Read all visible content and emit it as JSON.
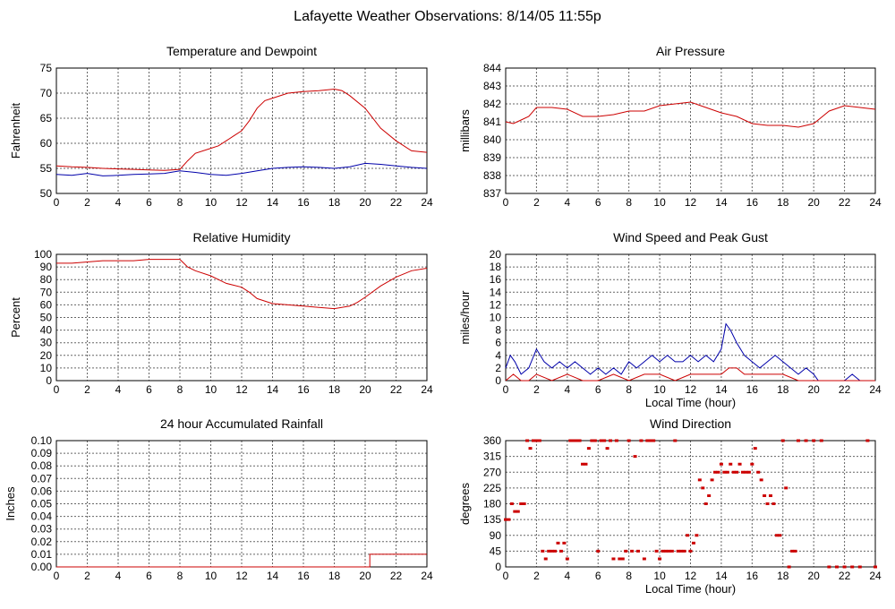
{
  "page": {
    "title": "Lafayette Weather Observations: 8/14/05 11:55p"
  },
  "chart_data": [
    {
      "type": "line",
      "title": "Temperature and Dewpoint",
      "xlabel": "",
      "ylabel": "Fahrenheit",
      "xlim": [
        0,
        24
      ],
      "ylim": [
        50,
        75
      ],
      "xticks": [
        0,
        2,
        4,
        6,
        8,
        10,
        12,
        14,
        16,
        18,
        20,
        22,
        24
      ],
      "yticks": [
        50,
        55,
        60,
        65,
        70,
        75
      ],
      "grid": true,
      "series": [
        {
          "color": "#cc0000",
          "x": [
            0,
            1,
            2,
            3,
            4,
            5,
            6,
            7,
            8,
            8.5,
            9,
            10,
            10.5,
            11,
            11.5,
            12,
            12.5,
            13,
            13.5,
            14,
            15,
            16,
            17,
            18,
            18.5,
            19,
            20,
            21,
            22,
            23,
            24
          ],
          "y": [
            55.5,
            55.3,
            55.2,
            55.0,
            54.9,
            54.8,
            54.7,
            54.6,
            54.8,
            56.5,
            58.0,
            59.0,
            59.5,
            60.5,
            61.5,
            62.5,
            64.5,
            67.0,
            68.5,
            69.0,
            70.0,
            70.3,
            70.5,
            70.8,
            70.5,
            69.5,
            67.0,
            63.0,
            60.5,
            58.5,
            58.2
          ]
        },
        {
          "color": "#0000aa",
          "x": [
            0,
            1,
            2,
            3,
            4,
            5,
            6,
            7,
            8,
            9,
            10,
            11,
            12,
            13,
            14,
            15,
            16,
            17,
            18,
            19,
            20,
            21,
            22,
            23,
            24
          ],
          "y": [
            53.8,
            53.6,
            54.0,
            53.5,
            53.6,
            53.8,
            53.9,
            54.0,
            54.5,
            54.2,
            53.8,
            53.6,
            54.0,
            54.5,
            55.0,
            55.2,
            55.3,
            55.2,
            55.0,
            55.3,
            56.0,
            55.8,
            55.5,
            55.2,
            55.0
          ]
        }
      ]
    },
    {
      "type": "line",
      "title": "Air Pressure",
      "xlabel": "",
      "ylabel": "millibars",
      "xlim": [
        0,
        24
      ],
      "ylim": [
        837,
        844
      ],
      "xticks": [
        0,
        2,
        4,
        6,
        8,
        10,
        12,
        14,
        16,
        18,
        20,
        22,
        24
      ],
      "yticks": [
        837,
        838,
        839,
        840,
        841,
        842,
        843,
        844
      ],
      "grid": true,
      "series": [
        {
          "color": "#cc0000",
          "x": [
            0,
            0.5,
            1,
            1.5,
            2,
            3,
            4,
            5,
            6,
            7,
            8,
            9,
            10,
            11,
            12,
            13,
            14,
            15,
            16,
            17,
            18,
            19,
            20,
            21,
            22,
            23,
            24
          ],
          "y": [
            841.0,
            840.9,
            841.1,
            841.3,
            841.8,
            841.8,
            841.7,
            841.3,
            841.3,
            841.4,
            841.6,
            841.6,
            841.9,
            842.0,
            842.1,
            841.8,
            841.5,
            841.3,
            840.9,
            840.8,
            840.8,
            840.7,
            840.9,
            841.6,
            841.9,
            841.8,
            841.7
          ]
        }
      ]
    },
    {
      "type": "line",
      "title": "Relative Humidity",
      "xlabel": "",
      "ylabel": "Percent",
      "xlim": [
        0,
        24
      ],
      "ylim": [
        0,
        100
      ],
      "xticks": [
        0,
        2,
        4,
        6,
        8,
        10,
        12,
        14,
        16,
        18,
        20,
        22,
        24
      ],
      "yticks": [
        0,
        10,
        20,
        30,
        40,
        50,
        60,
        70,
        80,
        90,
        100
      ],
      "grid": true,
      "series": [
        {
          "color": "#cc0000",
          "x": [
            0,
            1,
            2,
            3,
            4,
            5,
            6,
            7,
            8,
            8.5,
            9,
            10,
            10.5,
            11,
            12,
            12.5,
            13,
            14,
            15,
            16,
            17,
            18,
            19,
            19.5,
            20,
            21,
            22,
            23,
            24
          ],
          "y": [
            93,
            93,
            94,
            95,
            95,
            95,
            96,
            96,
            96,
            90,
            87,
            83,
            80,
            77,
            74,
            70,
            65,
            61,
            60,
            59,
            58,
            57,
            59,
            62,
            66,
            75,
            82,
            87,
            89
          ]
        }
      ]
    },
    {
      "type": "line",
      "title": "Wind Speed and Peak Gust",
      "xlabel": "Local Time (hour)",
      "ylabel": "miles/hour",
      "xlim": [
        0,
        24
      ],
      "ylim": [
        0,
        20
      ],
      "xticks": [
        0,
        2,
        4,
        6,
        8,
        10,
        12,
        14,
        16,
        18,
        20,
        22,
        24
      ],
      "yticks": [
        0,
        2,
        4,
        6,
        8,
        10,
        12,
        14,
        16,
        18,
        20
      ],
      "grid": true,
      "series": [
        {
          "color": "#0000aa",
          "x": [
            0,
            0.3,
            0.6,
            1,
            1.5,
            2,
            2.5,
            3,
            3.5,
            4,
            4.5,
            5,
            5.5,
            6,
            6.5,
            7,
            7.5,
            8,
            8.5,
            9,
            9.5,
            10,
            10.5,
            11,
            11.5,
            12,
            12.5,
            13,
            13.5,
            14,
            14.3,
            14.6,
            15,
            15.5,
            16,
            16.5,
            17,
            17.5,
            18,
            18.5,
            19,
            19.5,
            20,
            20.3,
            21,
            22,
            22.5,
            23,
            23.5,
            24
          ],
          "y": [
            2,
            4,
            3,
            1,
            2,
            5,
            3,
            2,
            3,
            2,
            3,
            2,
            1,
            2,
            1,
            2,
            1,
            3,
            2,
            3,
            4,
            3,
            4,
            3,
            3,
            4,
            3,
            4,
            3,
            5,
            9,
            8,
            6,
            4,
            3,
            2,
            3,
            4,
            3,
            2,
            1,
            2,
            1,
            0,
            0,
            0,
            1,
            0,
            0,
            0
          ]
        },
        {
          "color": "#cc0000",
          "x": [
            0,
            0.5,
            1,
            1.5,
            2,
            3,
            4,
            5,
            6,
            7,
            8,
            9,
            10,
            11,
            12,
            13,
            14,
            14.5,
            15,
            15.5,
            16,
            17,
            18,
            19,
            20,
            20.5,
            21,
            24
          ],
          "y": [
            0,
            1,
            0,
            0,
            1,
            0,
            1,
            0,
            0,
            1,
            0,
            1,
            1,
            0,
            1,
            1,
            1,
            2,
            2,
            1,
            1,
            1,
            1,
            0,
            0,
            0,
            0,
            0
          ]
        }
      ]
    },
    {
      "type": "line",
      "title": "24 hour Accumulated Rainfall",
      "xlabel": "",
      "ylabel": "Inches",
      "xlim": [
        0,
        24
      ],
      "ylim": [
        0,
        0.1
      ],
      "xticks": [
        0,
        2,
        4,
        6,
        8,
        10,
        12,
        14,
        16,
        18,
        20,
        22,
        24
      ],
      "yticks": [
        "0.00",
        "0.01",
        "0.02",
        "0.03",
        "0.04",
        "0.05",
        "0.06",
        "0.07",
        "0.08",
        "0.09",
        "0.10"
      ],
      "grid": true,
      "series": [
        {
          "color": "#cc0000",
          "x": [
            0,
            20.3,
            20.3,
            24
          ],
          "y": [
            0,
            0,
            0.01,
            0.01
          ]
        }
      ]
    },
    {
      "type": "scatter",
      "title": "Wind Direction",
      "xlabel": "Local Time (hour)",
      "ylabel": "degrees",
      "xlim": [
        0,
        24
      ],
      "ylim": [
        0,
        360
      ],
      "xticks": [
        0,
        2,
        4,
        6,
        8,
        10,
        12,
        14,
        16,
        18,
        20,
        22,
        24
      ],
      "yticks": [
        0,
        45,
        90,
        135,
        180,
        225,
        270,
        315,
        360
      ],
      "grid": true,
      "series": [
        {
          "color": "#cc0000",
          "x": [
            0,
            0.2,
            0.4,
            0.6,
            0.8,
            1.0,
            1.2,
            1.4,
            1.6,
            1.8,
            2.0,
            2.2,
            2.4,
            2.6,
            2.8,
            3.0,
            3.2,
            3.4,
            3.6,
            3.8,
            4.0,
            4.2,
            4.4,
            4.6,
            4.8,
            5.0,
            5.2,
            5.4,
            5.6,
            5.8,
            6.0,
            6.2,
            6.4,
            6.6,
            6.8,
            7.0,
            7.2,
            7.4,
            7.6,
            7.8,
            8.0,
            8.2,
            8.4,
            8.6,
            8.8,
            9.0,
            9.2,
            9.4,
            9.6,
            9.8,
            10.0,
            10.2,
            10.4,
            10.6,
            10.8,
            11.0,
            11.2,
            11.4,
            11.6,
            11.8,
            12.0,
            12.2,
            12.4,
            12.6,
            12.8,
            13.0,
            13.2,
            13.4,
            13.6,
            13.8,
            14.0,
            14.2,
            14.4,
            14.6,
            14.8,
            15.0,
            15.2,
            15.4,
            15.6,
            15.8,
            16.0,
            16.2,
            16.4,
            16.6,
            16.8,
            17.0,
            17.2,
            17.4,
            17.6,
            17.8,
            18.0,
            18.2,
            18.4,
            18.6,
            18.8,
            19.0,
            19.5,
            20.0,
            20.5,
            21.0,
            21.5,
            22.0,
            22.5,
            23.0,
            23.5,
            24.0
          ],
          "y": [
            135,
            135,
            180,
            158,
            158,
            180,
            180,
            360,
            338,
            360,
            360,
            360,
            45,
            23,
            45,
            45,
            45,
            68,
            45,
            68,
            23,
            360,
            360,
            360,
            360,
            293,
            293,
            338,
            360,
            360,
            45,
            360,
            360,
            338,
            360,
            23,
            360,
            23,
            23,
            45,
            360,
            45,
            315,
            45,
            360,
            23,
            360,
            360,
            360,
            45,
            23,
            45,
            45,
            45,
            45,
            360,
            45,
            45,
            45,
            90,
            45,
            68,
            90,
            248,
            225,
            180,
            203,
            248,
            270,
            270,
            293,
            270,
            270,
            293,
            270,
            270,
            293,
            270,
            270,
            270,
            293,
            338,
            270,
            248,
            203,
            180,
            203,
            180,
            90,
            90,
            360,
            225,
            0,
            45,
            45,
            360,
            360,
            360,
            360,
            0,
            0,
            0,
            0,
            0,
            360,
            0
          ]
        }
      ]
    }
  ]
}
